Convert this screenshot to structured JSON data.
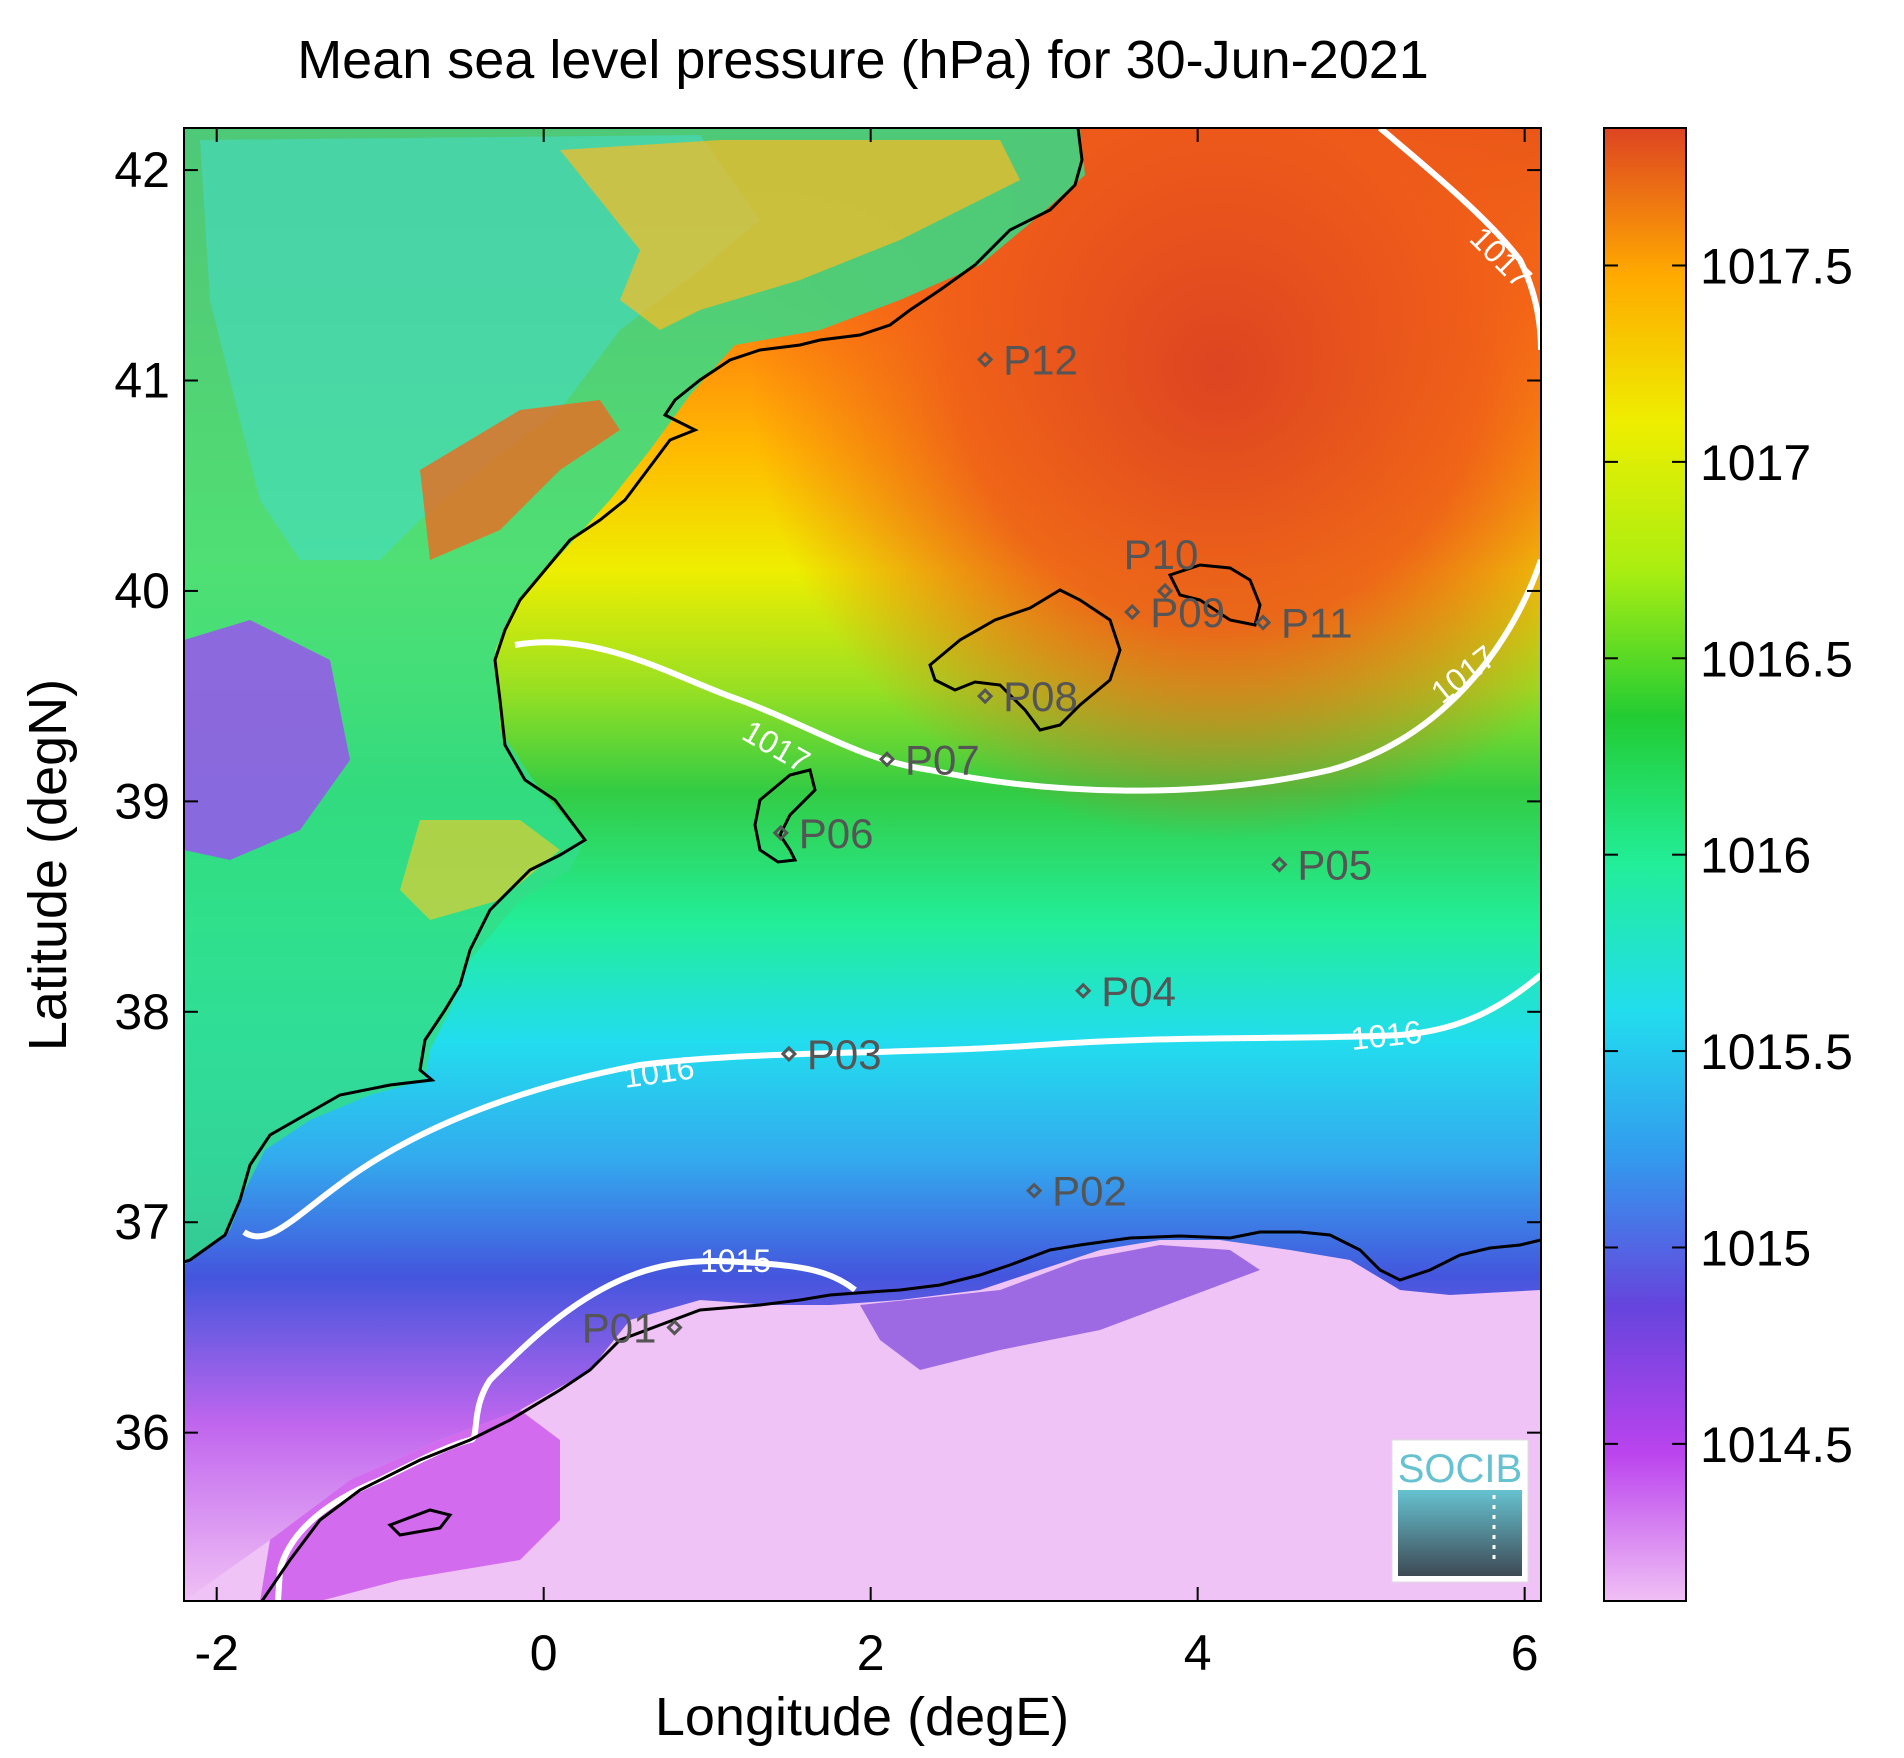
{
  "title": "Mean sea level pressure (hPa) for 30-Jun-2021",
  "xlabel": "Longitude (degE)",
  "ylabel": "Latitude (degN)",
  "x_ticks": [
    "-2",
    "0",
    "2",
    "4",
    "6"
  ],
  "y_ticks": [
    "36",
    "37",
    "38",
    "39",
    "40",
    "41",
    "42"
  ],
  "colorbar": {
    "ticks": [
      "1014.5",
      "1015",
      "1015.5",
      "1016",
      "1016.5",
      "1017",
      "1017.5"
    ],
    "min": 1014.1,
    "max": 1017.85,
    "colors": [
      "#f0c0f5",
      "#bb44ee",
      "#6644dd",
      "#3399ee",
      "#22ddee",
      "#22ee99",
      "#22cc33",
      "#aaee11",
      "#eeee00",
      "#ffaa00",
      "#dd4422"
    ]
  },
  "contour_labels": [
    "1015",
    "1016",
    "1016",
    "1017",
    "1017",
    "1017"
  ],
  "logo": "SOCIB",
  "chart_data": {
    "type": "heatmap",
    "title": "Mean sea level pressure (hPa) for 30-Jun-2021",
    "xlabel": "Longitude (degE)",
    "ylabel": "Latitude (degN)",
    "xlim": [
      -2.2,
      6.1
    ],
    "ylim": [
      35.2,
      42.2
    ],
    "units": "hPa",
    "contour_levels": [
      1015,
      1016,
      1017
    ],
    "stations": [
      {
        "name": "P01",
        "lon": 0.8,
        "lat": 36.5
      },
      {
        "name": "P02",
        "lon": 3.0,
        "lat": 37.15
      },
      {
        "name": "P03",
        "lon": 1.5,
        "lat": 37.8
      },
      {
        "name": "P04",
        "lon": 3.3,
        "lat": 38.1
      },
      {
        "name": "P05",
        "lon": 4.5,
        "lat": 38.7
      },
      {
        "name": "P06",
        "lon": 1.45,
        "lat": 38.85
      },
      {
        "name": "P07",
        "lon": 2.1,
        "lat": 39.2
      },
      {
        "name": "P08",
        "lon": 2.7,
        "lat": 39.5
      },
      {
        "name": "P09",
        "lon": 3.6,
        "lat": 39.9
      },
      {
        "name": "P10",
        "lon": 3.8,
        "lat": 40.0
      },
      {
        "name": "P11",
        "lon": 4.4,
        "lat": 39.85
      },
      {
        "name": "P12",
        "lon": 2.7,
        "lat": 41.1
      }
    ]
  }
}
